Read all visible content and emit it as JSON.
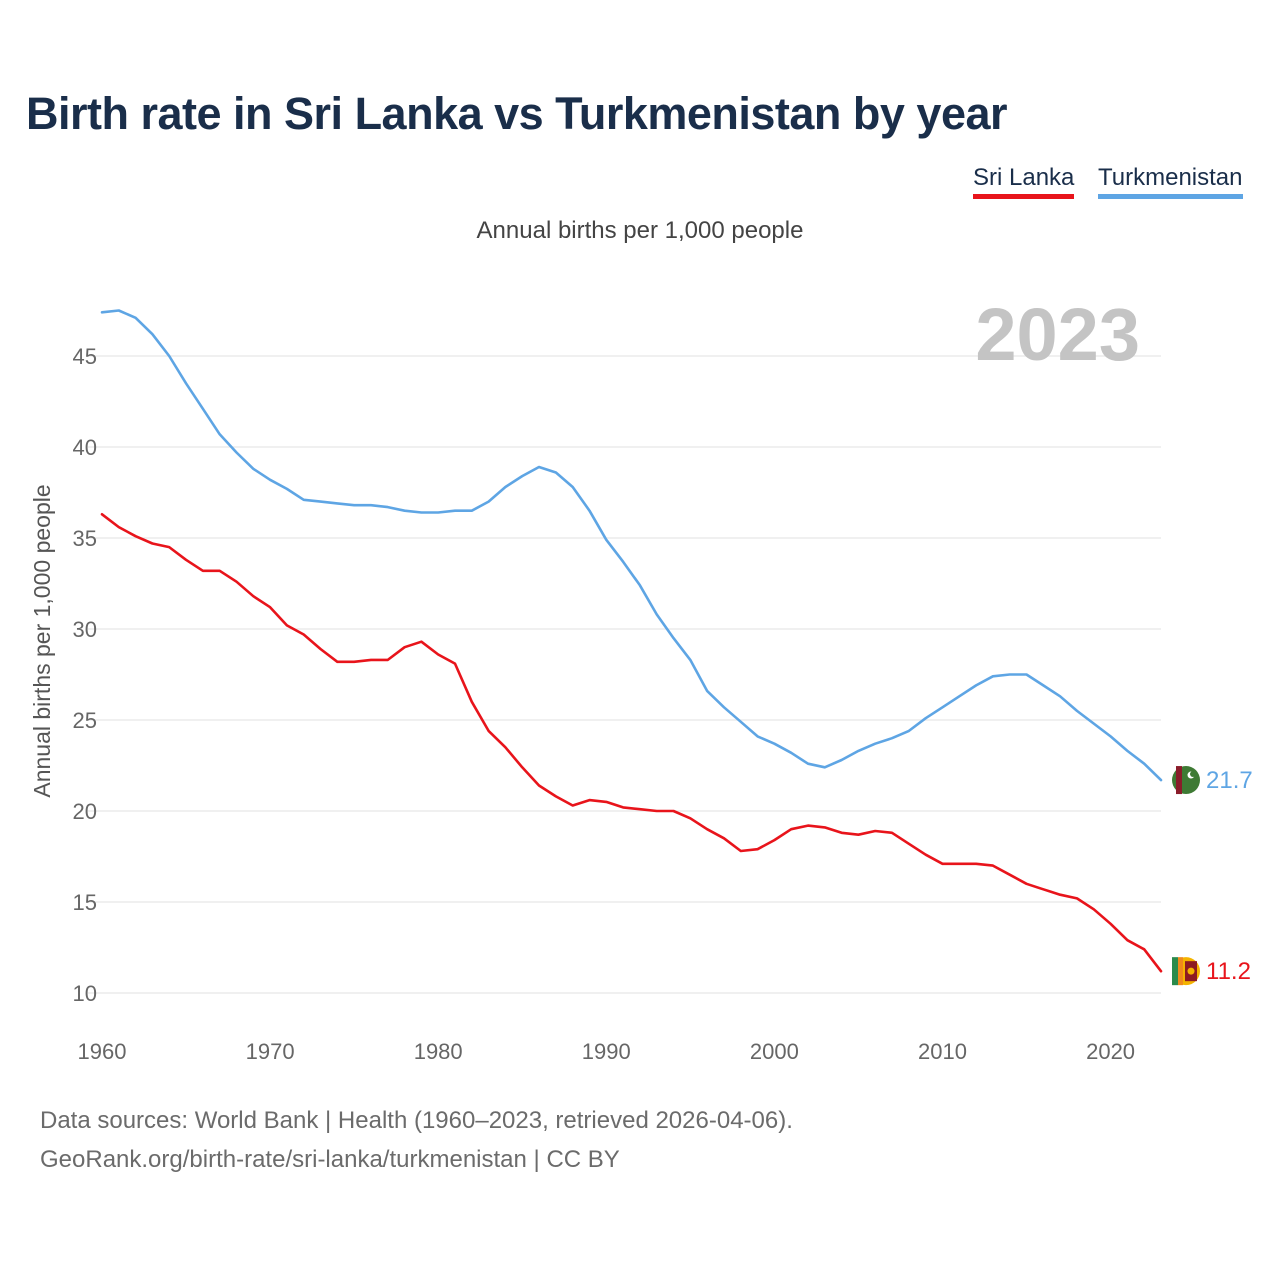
{
  "title": "Birth rate in Sri Lanka vs Turkmenistan by year",
  "subtitle": "Annual births per 1,000 people",
  "year_stamp": "2023",
  "legend": [
    {
      "name": "Sri Lanka",
      "color": "#e8141b"
    },
    {
      "name": "Turkmenistan",
      "color": "#5ea5e4"
    }
  ],
  "footer": {
    "line1": "Data sources: World Bank | Health (1960–2023, retrieved 2026-04-06).",
    "line2": "GeoRank.org/birth-rate/sri-lanka/turkmenistan | CC BY"
  },
  "chart_data": {
    "type": "line",
    "title": "Birth rate in Sri Lanka vs Turkmenistan by year",
    "xlabel": "",
    "ylabel": "Annual births per 1,000 people",
    "xlim": [
      1960,
      2023
    ],
    "ylim": [
      10,
      47.5
    ],
    "xticks": [
      1960,
      1970,
      1980,
      1990,
      2000,
      2010,
      2020
    ],
    "yticks": [
      10,
      15,
      20,
      25,
      30,
      35,
      40,
      45
    ],
    "grid": true,
    "legend_position": "top-right",
    "x": [
      1960,
      1961,
      1962,
      1963,
      1964,
      1965,
      1966,
      1967,
      1968,
      1969,
      1970,
      1971,
      1972,
      1973,
      1974,
      1975,
      1976,
      1977,
      1978,
      1979,
      1980,
      1981,
      1982,
      1983,
      1984,
      1985,
      1986,
      1987,
      1988,
      1989,
      1990,
      1991,
      1992,
      1993,
      1994,
      1995,
      1996,
      1997,
      1998,
      1999,
      2000,
      2001,
      2002,
      2003,
      2004,
      2005,
      2006,
      2007,
      2008,
      2009,
      2010,
      2011,
      2012,
      2013,
      2014,
      2015,
      2016,
      2017,
      2018,
      2019,
      2020,
      2021,
      2022,
      2023
    ],
    "series": [
      {
        "name": "Sri Lanka",
        "color": "#e8141b",
        "end_label": "11.2",
        "values": [
          36.3,
          35.6,
          35.1,
          34.7,
          34.5,
          33.8,
          33.2,
          33.2,
          32.6,
          31.8,
          31.2,
          30.2,
          29.7,
          28.9,
          28.2,
          28.2,
          28.3,
          28.3,
          29.0,
          29.3,
          28.6,
          28.1,
          26.0,
          24.4,
          23.5,
          22.4,
          21.4,
          20.8,
          20.3,
          20.6,
          20.5,
          20.2,
          20.1,
          20.0,
          20.0,
          19.6,
          19.0,
          18.5,
          17.8,
          17.9,
          18.4,
          19.0,
          19.2,
          19.1,
          18.8,
          18.7,
          18.9,
          18.8,
          18.2,
          17.6,
          17.1,
          17.1,
          17.1,
          17.0,
          16.5,
          16.0,
          15.7,
          15.4,
          15.2,
          14.6,
          13.8,
          12.9,
          12.4,
          11.2
        ]
      },
      {
        "name": "Turkmenistan",
        "color": "#5ea5e4",
        "end_label": "21.7",
        "values": [
          47.4,
          47.5,
          47.1,
          46.2,
          45.0,
          43.5,
          42.1,
          40.7,
          39.7,
          38.8,
          38.2,
          37.7,
          37.1,
          37.0,
          36.9,
          36.8,
          36.8,
          36.7,
          36.5,
          36.4,
          36.4,
          36.5,
          36.5,
          37.0,
          37.8,
          38.4,
          38.9,
          38.6,
          37.8,
          36.5,
          34.9,
          33.7,
          32.4,
          30.8,
          29.5,
          28.3,
          26.6,
          25.7,
          24.9,
          24.1,
          23.7,
          23.2,
          22.6,
          22.4,
          22.8,
          23.3,
          23.7,
          24.0,
          24.4,
          25.1,
          25.7,
          26.3,
          26.9,
          27.4,
          27.5,
          27.5,
          26.9,
          26.3,
          25.5,
          24.8,
          24.1,
          23.3,
          22.6,
          21.7
        ]
      }
    ]
  }
}
